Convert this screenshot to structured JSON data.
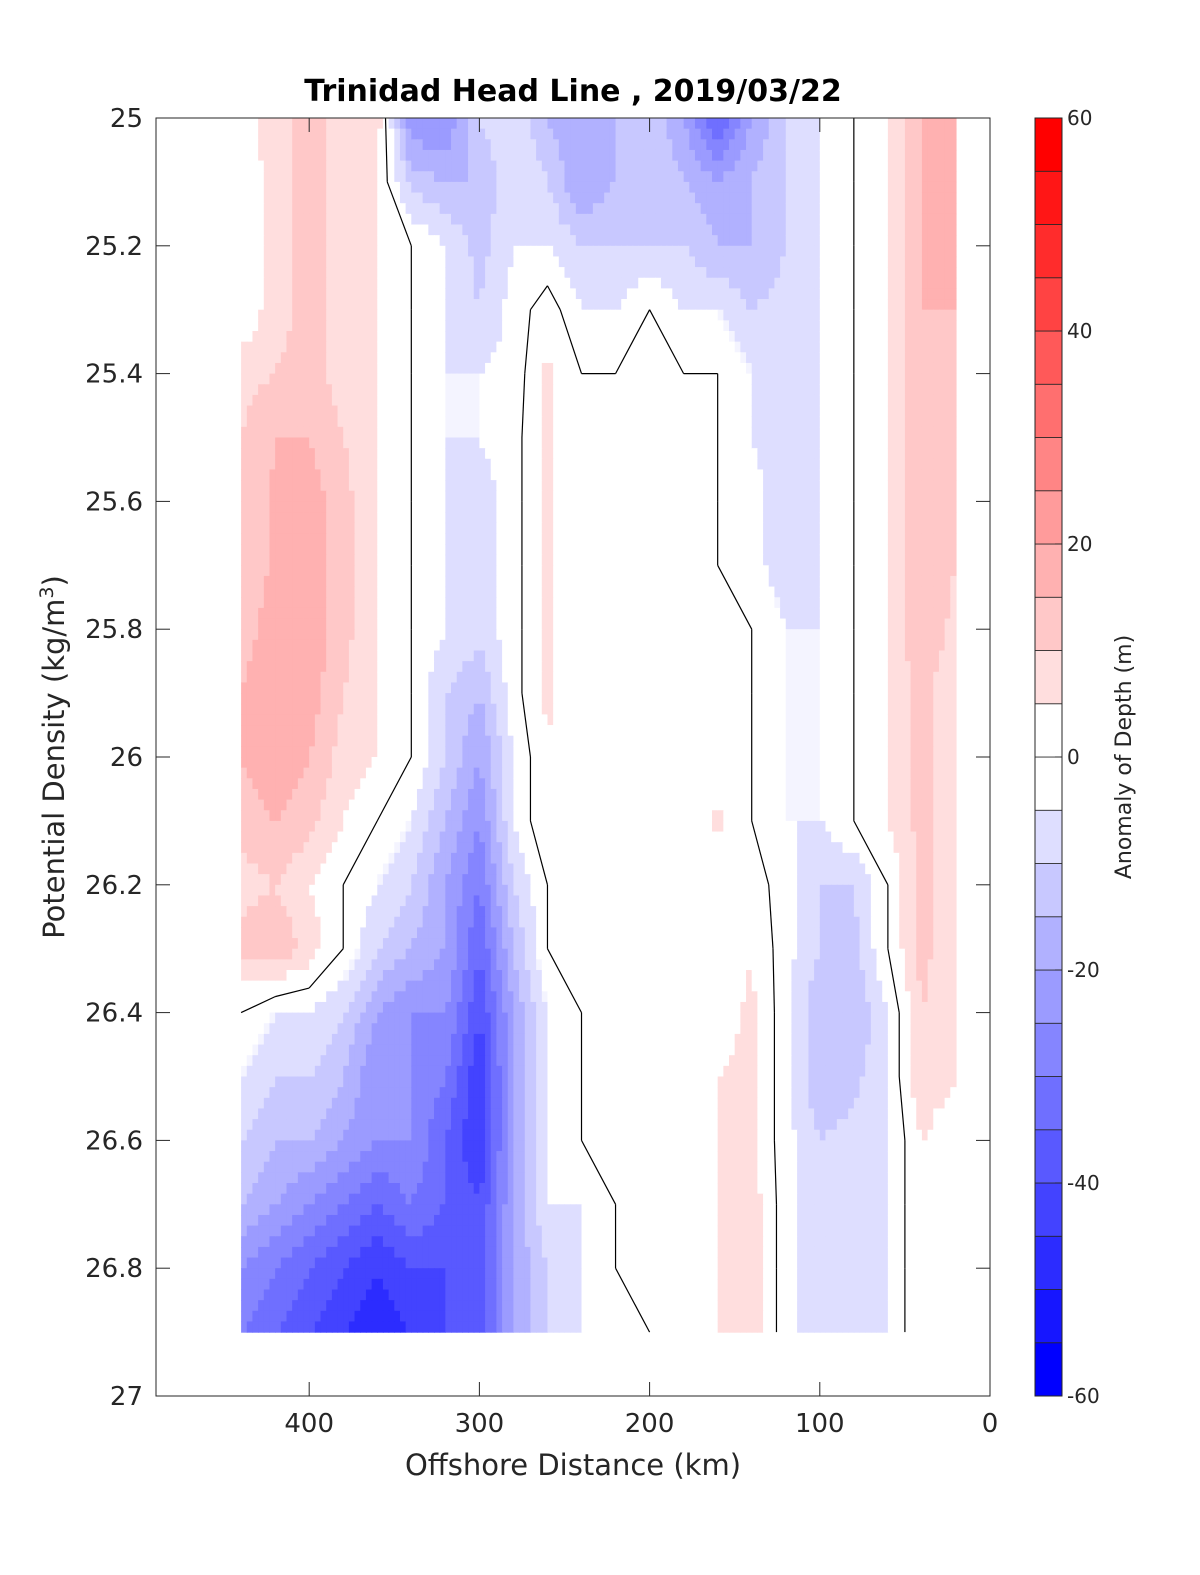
{
  "chart_data": {
    "type": "heatmap",
    "subtype": "filled-contour",
    "title": "Trinidad Head Line , 2019/03/22",
    "xlabel": "Offshore Distance (km)",
    "ylabel": "Potential Density (kg/m³)",
    "ylabel_main": "Potential Density (kg/m",
    "ylabel_sup": "3",
    "ylabel_end": ")",
    "x_reversed": true,
    "y_reversed": true,
    "xlim": [
      0,
      490
    ],
    "ylim": [
      25,
      27
    ],
    "xticks": [
      400,
      300,
      200,
      100,
      0
    ],
    "xtick_labels": [
      "400",
      "300",
      "200",
      "100",
      "0"
    ],
    "yticks": [
      25,
      25.2,
      25.4,
      25.6,
      25.8,
      26,
      26.2,
      26.4,
      26.6,
      26.8,
      27
    ],
    "ytick_labels": [
      "25",
      "25.2",
      "25.4",
      "25.6",
      "25.8",
      "26",
      "26.2",
      "26.4",
      "26.6",
      "26.8",
      "27"
    ],
    "colorbar": {
      "label": "Anomaly of Depth (m)",
      "range": [
        -60,
        60
      ],
      "step": 5,
      "ticks": [
        60,
        40,
        20,
        0,
        -20,
        -40,
        -60
      ],
      "tick_labels": [
        "60",
        "40",
        "20",
        "0",
        "-20",
        "-40",
        "-60"
      ],
      "colormap": "blue-white-red",
      "low_color": "#0000ff",
      "high_color": "#ff0000",
      "zero_color": "#ffffff"
    },
    "zero_contour_color": "#000000",
    "x_stations": [
      440,
      420,
      400,
      380,
      360,
      340,
      320,
      300,
      280,
      260,
      240,
      220,
      200,
      180,
      160,
      140,
      120,
      100,
      80,
      60,
      40,
      20
    ],
    "y_levels": [
      25.0,
      25.1,
      25.2,
      25.3,
      25.4,
      25.5,
      25.6,
      25.7,
      25.8,
      25.9,
      26.0,
      26.1,
      26.2,
      26.3,
      26.4,
      26.5,
      26.6,
      26.7,
      26.8,
      26.9
    ],
    "anomaly": [
      [
        0,
        10,
        10,
        10,
        8,
        -25,
        -25,
        -10,
        -5,
        -15,
        -20,
        -15,
        -10,
        -20,
        -35,
        -20,
        -10,
        -5,
        0,
        5,
        15,
        15
      ],
      [
        0,
        8,
        12,
        8,
        5,
        -12,
        -15,
        -15,
        -5,
        -10,
        -20,
        -15,
        -10,
        -15,
        -20,
        -15,
        -10,
        -5,
        0,
        5,
        15,
        15
      ],
      [
        0,
        8,
        12,
        8,
        5,
        0,
        -5,
        -12,
        -5,
        -5,
        -10,
        -10,
        -10,
        -10,
        -15,
        -15,
        -10,
        -5,
        0,
        5,
        15,
        15
      ],
      [
        0,
        8,
        12,
        8,
        5,
        0,
        -5,
        -10,
        -3,
        3,
        -5,
        -5,
        0,
        -5,
        -5,
        -10,
        -8,
        -5,
        0,
        5,
        15,
        15
      ],
      [
        8,
        10,
        12,
        8,
        5,
        0,
        -5,
        -5,
        -3,
        6,
        0,
        0,
        0,
        0,
        0,
        -5,
        -8,
        -5,
        0,
        5,
        15,
        12
      ],
      [
        10,
        15,
        15,
        10,
        5,
        0,
        -5,
        -5,
        -2,
        6,
        0,
        0,
        0,
        0,
        0,
        -5,
        -8,
        -5,
        0,
        5,
        15,
        12
      ],
      [
        10,
        16,
        18,
        12,
        5,
        0,
        -5,
        -8,
        -2,
        6,
        0,
        0,
        0,
        0,
        0,
        -3,
        -8,
        -5,
        0,
        5,
        15,
        10
      ],
      [
        10,
        16,
        18,
        12,
        5,
        0,
        -5,
        -8,
        -2,
        6,
        0,
        3,
        0,
        0,
        0,
        -3,
        -8,
        -5,
        0,
        5,
        15,
        10
      ],
      [
        12,
        18,
        18,
        12,
        5,
        0,
        -5,
        -8,
        -2,
        6,
        0,
        0,
        0,
        0,
        0,
        0,
        -5,
        -5,
        0,
        5,
        15,
        8
      ],
      [
        15,
        20,
        18,
        10,
        5,
        0,
        -10,
        -15,
        -2,
        6,
        0,
        0,
        0,
        0,
        0,
        0,
        -5,
        -5,
        0,
        5,
        12,
        5
      ],
      [
        15,
        20,
        15,
        8,
        5,
        0,
        -10,
        -20,
        -5,
        5,
        0,
        0,
        0,
        0,
        3,
        0,
        -5,
        -5,
        0,
        5,
        12,
        5
      ],
      [
        12,
        15,
        12,
        5,
        0,
        -5,
        -15,
        -25,
        -5,
        5,
        0,
        0,
        0,
        0,
        6,
        0,
        -5,
        -5,
        0,
        5,
        12,
        5
      ],
      [
        8,
        10,
        5,
        0,
        -5,
        -10,
        -20,
        -30,
        -10,
        0,
        0,
        0,
        0,
        0,
        0,
        3,
        -3,
        -10,
        -10,
        0,
        12,
        5
      ],
      [
        12,
        15,
        8,
        0,
        -10,
        -15,
        -20,
        -35,
        -15,
        0,
        0,
        0,
        0,
        0,
        0,
        5,
        -3,
        -10,
        -12,
        0,
        12,
        5
      ],
      [
        0,
        -5,
        -5,
        -10,
        -20,
        -25,
        -25,
        -40,
        -20,
        -5,
        0,
        0,
        0,
        0,
        3,
        6,
        -3,
        -15,
        -15,
        -5,
        10,
        5
      ],
      [
        -5,
        -10,
        -10,
        -15,
        -25,
        -25,
        -30,
        -45,
        -20,
        -5,
        0,
        0,
        0,
        3,
        5,
        6,
        -3,
        -15,
        -12,
        -5,
        10,
        5
      ],
      [
        -10,
        -15,
        -15,
        -20,
        -25,
        -25,
        -35,
        -45,
        -20,
        -5,
        0,
        0,
        0,
        3,
        5,
        6,
        -3,
        -10,
        -8,
        -5,
        5,
        0
      ],
      [
        -15,
        -20,
        -25,
        -30,
        -35,
        -30,
        -35,
        -40,
        -20,
        -5,
        -5,
        0,
        0,
        3,
        5,
        8,
        -3,
        -10,
        -8,
        -5,
        5,
        0
      ],
      [
        -25,
        -30,
        -35,
        -40,
        -45,
        -40,
        -40,
        -40,
        -20,
        -10,
        -5,
        0,
        0,
        3,
        5,
        8,
        -3,
        -10,
        -10,
        -5,
        5,
        0
      ],
      [
        -30,
        -35,
        -40,
        -45,
        -50,
        -45,
        -40,
        -40,
        -20,
        -10,
        -5,
        -5,
        0,
        3,
        5,
        8,
        -3,
        -10,
        -10,
        -5,
        5,
        0
      ]
    ]
  }
}
